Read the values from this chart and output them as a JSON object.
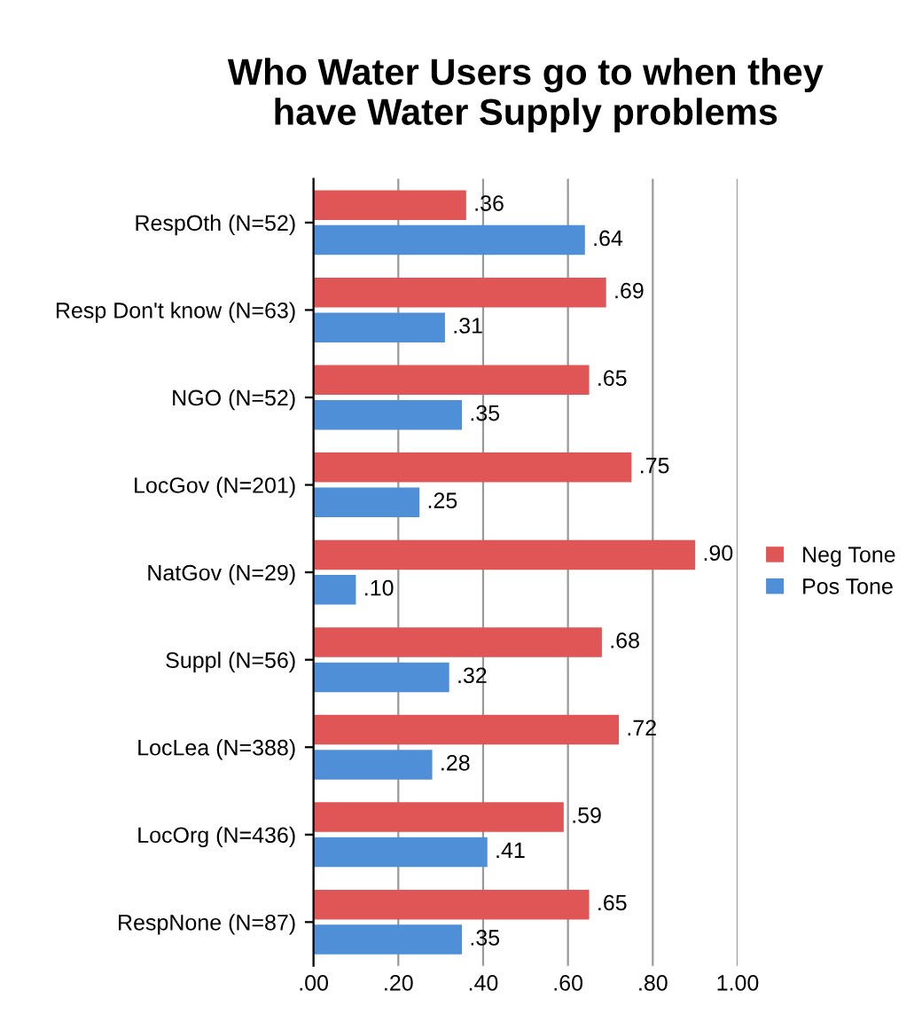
{
  "chart_data": {
    "type": "bar",
    "orientation": "horizontal",
    "title": "Who Water Users go to when they\nhave Water Supply problems",
    "categories": [
      "RespOth (N=52)",
      "Resp Don't know (N=63)",
      "NGO (N=52)",
      "LocGov (N=201)",
      "NatGov (N=29)",
      "Suppl (N=56)",
      "LocLea (N=388)",
      "LocOrg (N=436)",
      "RespNone (N=87)"
    ],
    "series": [
      {
        "name": "Neg Tone",
        "color": "#e05555",
        "values": [
          0.36,
          0.69,
          0.65,
          0.75,
          0.9,
          0.68,
          0.72,
          0.59,
          0.65
        ],
        "value_labels": [
          ".36",
          ".69",
          ".65",
          ".75",
          ".90",
          ".68",
          ".72",
          ".59",
          ".65"
        ]
      },
      {
        "name": "Pos Tone",
        "color": "#4f8fd8",
        "values": [
          0.64,
          0.31,
          0.35,
          0.25,
          0.1,
          0.32,
          0.28,
          0.41,
          0.35
        ],
        "value_labels": [
          ".64",
          ".31",
          ".35",
          ".25",
          ".10",
          ".32",
          ".28",
          ".41",
          ".35"
        ]
      }
    ],
    "xlim": [
      0,
      1
    ],
    "xticks": [
      {
        "value": 0,
        "label": ".00"
      },
      {
        "value": 0.2,
        "label": ".20"
      },
      {
        "value": 0.4,
        "label": ".40"
      },
      {
        "value": 0.6,
        "label": ".60"
      },
      {
        "value": 0.8,
        "label": ".80"
      },
      {
        "value": 1,
        "label": "1.00"
      }
    ],
    "grid": "x",
    "legend": "right"
  }
}
